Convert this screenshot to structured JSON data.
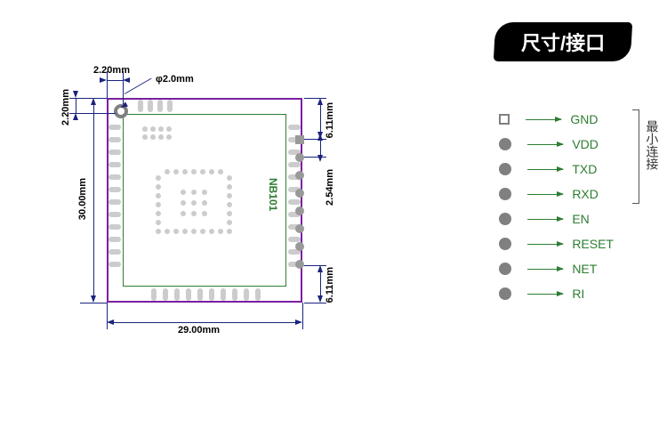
{
  "title": "尺寸/接口",
  "colors": {
    "arrow": "#2e7d32",
    "dim": "#1a237e",
    "silk": "#2e7d32",
    "outline": "#7b1fa2",
    "pad": "#cccccc",
    "hole": "#808080",
    "banner_bg": "#000000",
    "banner_fg": "#ffffff"
  },
  "dimensions": {
    "width_mm": "29.00mm",
    "height_mm": "30.00mm",
    "hole_offset_x": "2.20mm",
    "hole_offset_y": "2.20mm",
    "hole_dia": "φ2.0mm",
    "header_pitch": "2.54mm",
    "edge_to_header_top": "6.11mm",
    "edge_to_header_bottom": "6.11mm"
  },
  "pcb": {
    "label": "NB101",
    "label_color": "#2e7d32"
  },
  "pins": [
    {
      "name": "GND",
      "shape": "square"
    },
    {
      "name": "VDD",
      "shape": "round"
    },
    {
      "name": "TXD",
      "shape": "round"
    },
    {
      "name": "RXD",
      "shape": "round"
    },
    {
      "name": "EN",
      "shape": "round"
    },
    {
      "name": "RESET",
      "shape": "round"
    },
    {
      "name": "NET",
      "shape": "round"
    },
    {
      "name": "RI",
      "shape": "round"
    }
  ],
  "bracket_label": "最小连接",
  "bracket_covers_pins": 4
}
